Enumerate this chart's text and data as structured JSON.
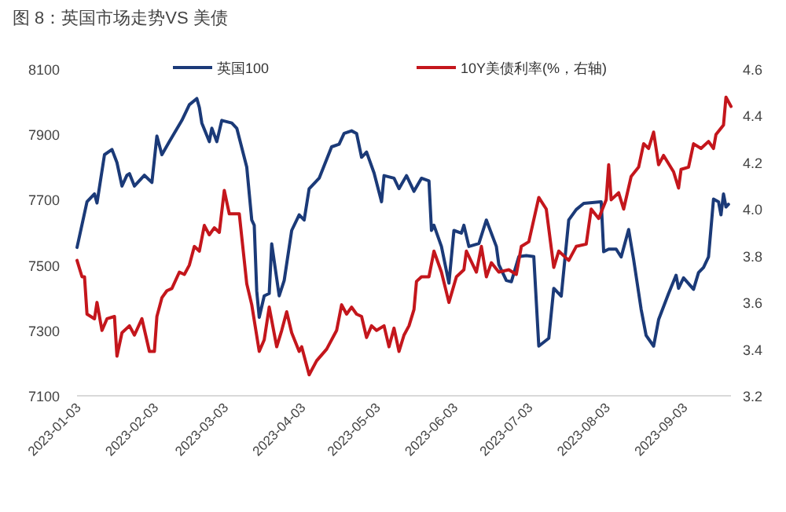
{
  "chart_data": {
    "type": "line",
    "title": "图 8：英国市场走势VS 美债",
    "xlim": [
      "2023-01-03",
      "2023-09-22"
    ],
    "xticks": [
      "2023-01-03",
      "2023-02-03",
      "2023-03-03",
      "2023-04-03",
      "2023-05-03",
      "2023-06-03",
      "2023-07-03",
      "2023-08-03",
      "2023-09-03"
    ],
    "ylim": [
      7100,
      8100
    ],
    "yticks": [
      7100,
      7300,
      7500,
      7700,
      7900,
      8100
    ],
    "y2lim": [
      3.2,
      4.6
    ],
    "y2ticks": [
      {
        "value": 3.2,
        "label": "3.2"
      },
      {
        "value": 3.4,
        "label": "3.4"
      },
      {
        "value": 3.6,
        "label": "3.6"
      },
      {
        "value": 3.8,
        "label": "3.8"
      },
      {
        "value": 4.0,
        "label": "4.0"
      },
      {
        "value": 4.2,
        "label": "4.2"
      },
      {
        "value": 4.4,
        "label": "4.4"
      },
      {
        "value": 4.6,
        "label": "4.6"
      }
    ],
    "legend": "top",
    "series": [
      {
        "name": "英国100",
        "color": "#1b3a78",
        "x": [
          "2023-01-03",
          "2023-01-07",
          "2023-01-10",
          "2023-01-11",
          "2023-01-14",
          "2023-01-17",
          "2023-01-19",
          "2023-01-21",
          "2023-01-23",
          "2023-01-24",
          "2023-01-26",
          "2023-01-30",
          "2023-02-02",
          "2023-02-04",
          "2023-02-06",
          "2023-02-09",
          "2023-02-14",
          "2023-02-17",
          "2023-02-20",
          "2023-02-21",
          "2023-02-22",
          "2023-02-25",
          "2023-02-26",
          "2023-02-28",
          "2023-03-02",
          "2023-03-06",
          "2023-03-08",
          "2023-03-12",
          "2023-03-14",
          "2023-03-15",
          "2023-03-16",
          "2023-03-17",
          "2023-03-19",
          "2023-03-21",
          "2023-03-22",
          "2023-03-25",
          "2023-03-27",
          "2023-03-30",
          "2023-04-02",
          "2023-04-04",
          "2023-04-06",
          "2023-04-10",
          "2023-04-15",
          "2023-04-18",
          "2023-04-20",
          "2023-04-23",
          "2023-04-25",
          "2023-04-27",
          "2023-04-29",
          "2023-05-02",
          "2023-05-05",
          "2023-05-06",
          "2023-05-10",
          "2023-05-12",
          "2023-05-15",
          "2023-05-18",
          "2023-05-21",
          "2023-05-24",
          "2023-05-25",
          "2023-05-26",
          "2023-05-29",
          "2023-06-01",
          "2023-06-03",
          "2023-06-06",
          "2023-06-07",
          "2023-06-09",
          "2023-06-13",
          "2023-06-16",
          "2023-06-20",
          "2023-06-21",
          "2023-06-24",
          "2023-06-26",
          "2023-06-29",
          "2023-07-02",
          "2023-07-05",
          "2023-07-07",
          "2023-07-11",
          "2023-07-13",
          "2023-07-16",
          "2023-07-19",
          "2023-07-22",
          "2023-07-25",
          "2023-08-01",
          "2023-08-02",
          "2023-08-04",
          "2023-08-07",
          "2023-08-09",
          "2023-08-12",
          "2023-08-14",
          "2023-08-17",
          "2023-08-19",
          "2023-08-22",
          "2023-08-24",
          "2023-08-28",
          "2023-08-31",
          "2023-09-01",
          "2023-09-03",
          "2023-09-07",
          "2023-09-09",
          "2023-09-11",
          "2023-09-13",
          "2023-09-15",
          "2023-09-17",
          "2023-09-18",
          "2023-09-19",
          "2023-09-20",
          "2023-09-21"
        ],
        "values": [
          7554,
          7694,
          7718,
          7690,
          7838,
          7854,
          7814,
          7742,
          7775,
          7780,
          7742,
          7775,
          7753,
          7895,
          7838,
          7878,
          7943,
          7991,
          8010,
          7983,
          7935,
          7878,
          7919,
          7878,
          7943,
          7935,
          7919,
          7800,
          7638,
          7622,
          7420,
          7340,
          7406,
          7413,
          7565,
          7406,
          7453,
          7606,
          7654,
          7638,
          7734,
          7766,
          7862,
          7870,
          7903,
          7911,
          7903,
          7830,
          7846,
          7782,
          7694,
          7774,
          7766,
          7734,
          7774,
          7726,
          7766,
          7758,
          7606,
          7622,
          7557,
          7445,
          7606,
          7598,
          7622,
          7557,
          7566,
          7638,
          7557,
          7501,
          7453,
          7449,
          7526,
          7529,
          7526,
          7252,
          7276,
          7429,
          7405,
          7638,
          7670,
          7689,
          7694,
          7541,
          7549,
          7549,
          7525,
          7609,
          7517,
          7365,
          7285,
          7252,
          7333,
          7413,
          7469,
          7429,
          7461,
          7426,
          7477,
          7493,
          7525,
          7702,
          7694,
          7654,
          7718,
          7678,
          7686
        ]
      },
      {
        "name": "10Y美债利率(%，右轴)",
        "color": "#c4161c",
        "axis": "y2",
        "x": [
          "2023-01-03",
          "2023-01-05",
          "2023-01-06",
          "2023-01-07",
          "2023-01-10",
          "2023-01-11",
          "2023-01-13",
          "2023-01-15",
          "2023-01-18",
          "2023-01-19",
          "2023-01-21",
          "2023-01-24",
          "2023-01-26",
          "2023-01-29",
          "2023-02-01",
          "2023-02-03",
          "2023-02-04",
          "2023-02-06",
          "2023-02-08",
          "2023-02-10",
          "2023-02-13",
          "2023-02-15",
          "2023-02-17",
          "2023-02-19",
          "2023-02-21",
          "2023-02-23",
          "2023-02-25",
          "2023-02-27",
          "2023-03-01",
          "2023-03-03",
          "2023-03-05",
          "2023-03-09",
          "2023-03-12",
          "2023-03-14",
          "2023-03-17",
          "2023-03-19",
          "2023-03-21",
          "2023-03-24",
          "2023-03-26",
          "2023-03-28",
          "2023-03-30",
          "2023-04-02",
          "2023-04-03",
          "2023-04-06",
          "2023-04-09",
          "2023-04-13",
          "2023-04-17",
          "2023-04-19",
          "2023-04-21",
          "2023-04-23",
          "2023-04-25",
          "2023-04-27",
          "2023-04-29",
          "2023-05-01",
          "2023-05-03",
          "2023-05-06",
          "2023-05-08",
          "2023-05-10",
          "2023-05-12",
          "2023-05-14",
          "2023-05-16",
          "2023-05-18",
          "2023-05-19",
          "2023-05-21",
          "2023-05-24",
          "2023-05-26",
          "2023-05-29",
          "2023-06-01",
          "2023-06-04",
          "2023-06-07",
          "2023-06-08",
          "2023-06-12",
          "2023-06-14",
          "2023-06-16",
          "2023-06-18",
          "2023-06-21",
          "2023-06-25",
          "2023-06-28",
          "2023-06-30",
          "2023-07-03",
          "2023-07-07",
          "2023-07-10",
          "2023-07-13",
          "2023-07-15",
          "2023-07-19",
          "2023-07-22",
          "2023-07-26",
          "2023-07-28",
          "2023-07-31",
          "2023-08-03",
          "2023-08-04",
          "2023-08-05",
          "2023-08-08",
          "2023-08-10",
          "2023-08-13",
          "2023-08-16",
          "2023-08-18",
          "2023-08-20",
          "2023-08-22",
          "2023-08-24",
          "2023-08-26",
          "2023-08-30",
          "2023-09-01",
          "2023-09-02",
          "2023-09-05",
          "2023-09-07",
          "2023-09-10",
          "2023-09-13",
          "2023-09-15",
          "2023-09-16",
          "2023-09-19",
          "2023-09-20",
          "2023-09-22"
        ],
        "values": [
          3.78,
          3.71,
          3.71,
          3.55,
          3.53,
          3.6,
          3.48,
          3.53,
          3.54,
          3.37,
          3.47,
          3.5,
          3.46,
          3.53,
          3.39,
          3.39,
          3.54,
          3.62,
          3.65,
          3.66,
          3.73,
          3.72,
          3.76,
          3.84,
          3.82,
          3.93,
          3.89,
          3.92,
          3.9,
          4.08,
          3.98,
          3.98,
          3.68,
          3.59,
          3.39,
          3.44,
          3.58,
          3.41,
          3.48,
          3.56,
          3.47,
          3.39,
          3.41,
          3.29,
          3.35,
          3.4,
          3.48,
          3.59,
          3.55,
          3.58,
          3.55,
          3.54,
          3.45,
          3.5,
          3.48,
          3.5,
          3.41,
          3.49,
          3.39,
          3.46,
          3.5,
          3.57,
          3.69,
          3.71,
          3.71,
          3.82,
          3.73,
          3.6,
          3.71,
          3.74,
          3.82,
          3.73,
          3.84,
          3.71,
          3.77,
          3.73,
          3.74,
          3.72,
          3.84,
          3.86,
          4.05,
          4.0,
          3.75,
          3.82,
          3.78,
          3.84,
          3.85,
          4.0,
          3.96,
          4.04,
          4.19,
          4.04,
          4.07,
          4.0,
          4.14,
          4.18,
          4.28,
          4.26,
          4.33,
          4.19,
          4.23,
          4.16,
          4.09,
          4.17,
          4.18,
          4.28,
          4.26,
          4.29,
          4.26,
          4.32,
          4.36,
          4.48,
          4.44
        ]
      }
    ]
  }
}
